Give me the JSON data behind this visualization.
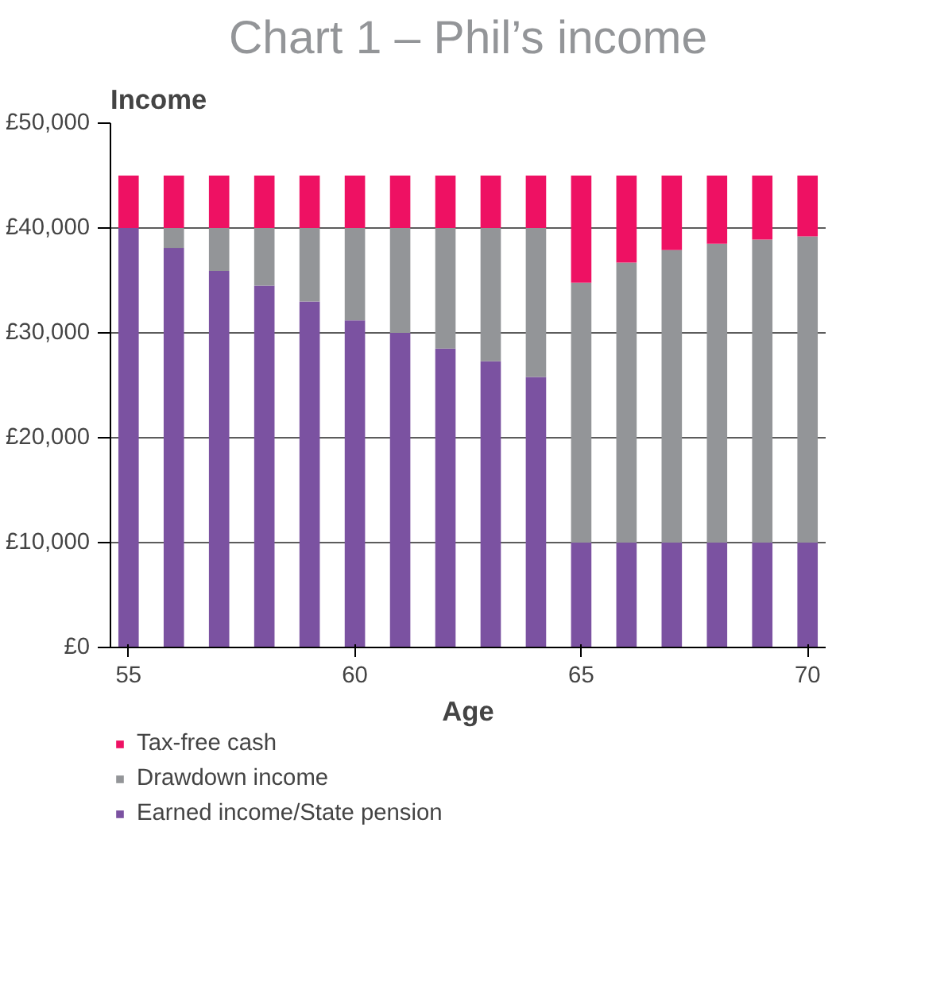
{
  "chart_data": {
    "type": "bar",
    "stacked": true,
    "title": "Chart 1 – Phil’s income",
    "ylabel": "Income",
    "xlabel": "Age",
    "x": [
      55,
      56,
      57,
      58,
      59,
      60,
      61,
      62,
      63,
      64,
      65,
      66,
      67,
      68,
      69,
      70
    ],
    "series": [
      {
        "name": "Earned income/State pension",
        "color": "#7b52a1",
        "values": [
          40000,
          38100,
          35900,
          34500,
          33000,
          31200,
          30000,
          28500,
          27300,
          25800,
          10000,
          10000,
          10000,
          10000,
          10000,
          10000
        ]
      },
      {
        "name": "Drawdown income",
        "color": "#939598",
        "values": [
          0,
          1900,
          4100,
          5500,
          7000,
          8800,
          10000,
          11500,
          12700,
          14200,
          24800,
          26700,
          27900,
          28500,
          28900,
          29200
        ]
      },
      {
        "name": "Tax-free cash",
        "color": "#ee1163",
        "values": [
          5000,
          5000,
          5000,
          5000,
          5000,
          5000,
          5000,
          5000,
          5000,
          5000,
          10200,
          8300,
          7100,
          6500,
          6100,
          5800
        ]
      }
    ],
    "xlim": [
      54.6,
      70.4
    ],
    "xticks": [
      55,
      60,
      65,
      70
    ],
    "ylim": [
      0,
      50000
    ],
    "yticks": [
      {
        "value": 0,
        "label": "£0"
      },
      {
        "value": 10000,
        "label": "£10,000"
      },
      {
        "value": 20000,
        "label": "£20,000"
      },
      {
        "value": 30000,
        "label": "£30,000"
      },
      {
        "value": 40000,
        "label": "£40,000"
      },
      {
        "value": 50000,
        "label": "£50,000"
      }
    ],
    "grid": "y",
    "legend": "bottom left"
  }
}
